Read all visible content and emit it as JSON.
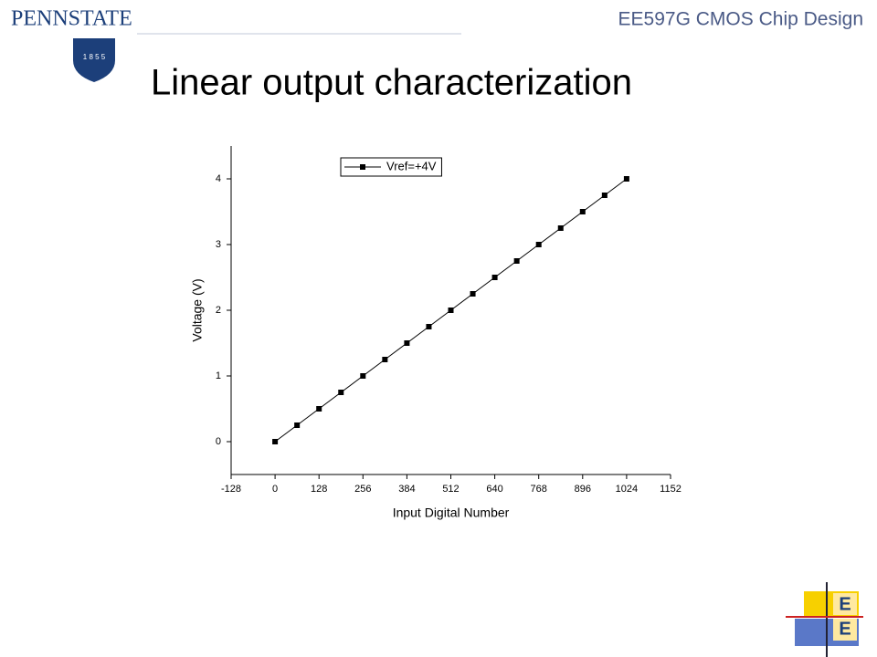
{
  "slide": {
    "logo_name": "PENNSTATE",
    "logo_year": "1 8 5 5",
    "course": "EE597G CMOS Chip Design",
    "title": "Linear output characterization",
    "corner_logo": [
      "E",
      "E"
    ]
  },
  "chart_data": {
    "type": "line",
    "x_label": "Input Digital Number",
    "y_label": "Voltage (V)",
    "x": [
      0,
      64,
      128,
      192,
      256,
      320,
      384,
      448,
      512,
      576,
      640,
      704,
      768,
      832,
      896,
      960,
      1024
    ],
    "series": [
      {
        "name": "Vref=+4V",
        "color": "#000000",
        "marker": "square",
        "values": [
          0,
          0.25,
          0.5,
          0.75,
          1,
          1.25,
          1.5,
          1.75,
          2,
          2.25,
          2.5,
          2.75,
          3,
          3.25,
          3.5,
          3.75,
          4
        ]
      }
    ],
    "xlim": [
      -128,
      1152
    ],
    "xticks": [
      -128,
      0,
      128,
      256,
      384,
      512,
      640,
      768,
      896,
      1024,
      1152
    ],
    "ylim": [
      -0.5,
      4.5
    ],
    "yticks": [
      0,
      1,
      2,
      3,
      4
    ],
    "legend": "upper left",
    "grid": false
  }
}
